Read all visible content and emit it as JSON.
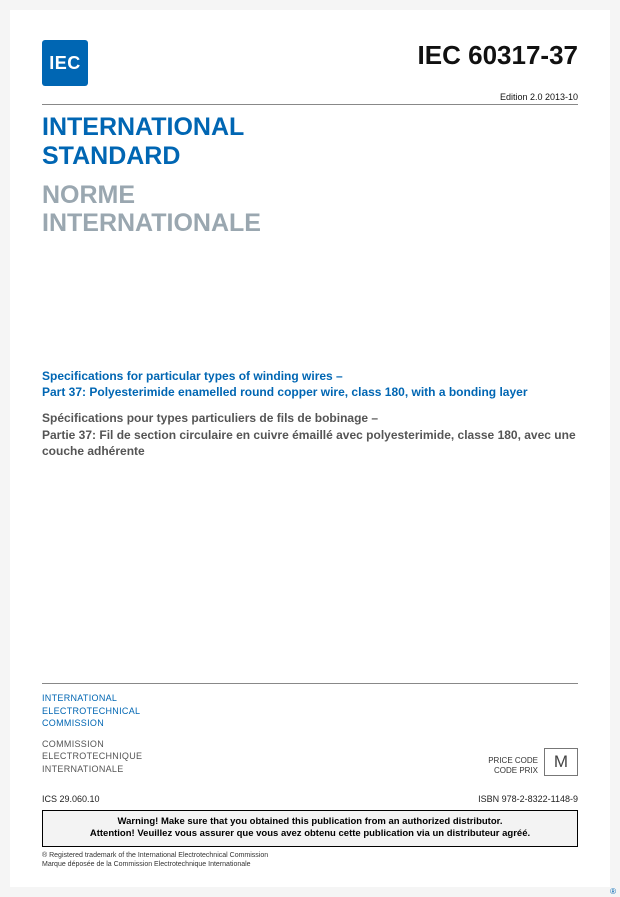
{
  "logo": {
    "text": "IEC",
    "reg": "®",
    "bg_color": "#0066b3"
  },
  "std_code": "IEC 60317-37",
  "edition_line": "Edition 2.0    2013-10",
  "heading_en_line1": "INTERNATIONAL",
  "heading_en_line2": "STANDARD",
  "heading_fr_line1": "NORME",
  "heading_fr_line2": "INTERNATIONALE",
  "spec_en_line1": "Specifications for particular types of winding wires –",
  "spec_en_line2": "Part 37: Polyesterimide enamelled round copper wire, class 180, with a bonding layer",
  "spec_fr_line1": "Spécifications pour types particuliers de fils de bobinage –",
  "spec_fr_line2": "Partie 37: Fil de section circulaire en cuivre émaillé avec polyesterimide, classe 180, avec une couche adhérente",
  "org_en_line1": "INTERNATIONAL",
  "org_en_line2": "ELECTROTECHNICAL",
  "org_en_line3": "COMMISSION",
  "org_fr_line1": "COMMISSION",
  "org_fr_line2": "ELECTROTECHNIQUE",
  "org_fr_line3": "INTERNATIONALE",
  "price_label_en": "PRICE CODE",
  "price_label_fr": "CODE PRIX",
  "price_code": "M",
  "ics": "ICS 29.060.10",
  "isbn": "ISBN 978-2-8322-1148-9",
  "warning_en": "Warning! Make sure that you obtained this publication from an authorized distributor.",
  "warning_fr": "Attention! Veuillez vous assurer que vous avez obtenu cette publication via un distributeur agréé.",
  "trademark_en": "® Registered trademark of the International Electrotechnical Commission",
  "trademark_fr": "Marque déposée de la Commission Electrotechnique Internationale"
}
